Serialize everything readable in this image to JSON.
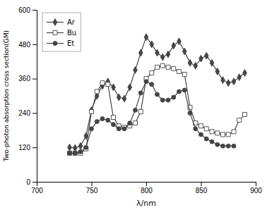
{
  "chart_data": {
    "type": "line",
    "xlabel": "λ/nm",
    "ylabel": "Two-photon absorption cross section(GM)",
    "xlim": [
      700,
      900
    ],
    "ylim": [
      0,
      600
    ],
    "xticks": [
      700,
      750,
      800,
      850,
      900
    ],
    "yticks": [
      0,
      120,
      240,
      360,
      480,
      600
    ],
    "legend": "upper left",
    "series": [
      {
        "name": "Ar",
        "color": "#444444",
        "marker": "diamond",
        "x": [
          730,
          735,
          740,
          745,
          750,
          755,
          760,
          765,
          770,
          775,
          780,
          785,
          790,
          795,
          800,
          805,
          810,
          815,
          820,
          825,
          830,
          835,
          840,
          845,
          850,
          855,
          860,
          865,
          870,
          875,
          880,
          885,
          890
        ],
        "values": [
          120,
          118,
          125,
          160,
          250,
          300,
          335,
          350,
          330,
          295,
          290,
          330,
          390,
          450,
          505,
          480,
          450,
          435,
          445,
          475,
          490,
          455,
          415,
          405,
          430,
          440,
          415,
          385,
          355,
          345,
          350,
          365,
          380
        ]
      },
      {
        "name": "Bu",
        "color": "#444444",
        "marker": "square-open",
        "x": [
          730,
          735,
          740,
          745,
          750,
          755,
          760,
          765,
          770,
          775,
          780,
          785,
          790,
          795,
          800,
          805,
          810,
          815,
          820,
          825,
          830,
          835,
          840,
          845,
          850,
          855,
          860,
          865,
          870,
          875,
          880,
          885,
          890
        ],
        "values": [
          100,
          100,
          100,
          115,
          245,
          315,
          345,
          340,
          225,
          195,
          190,
          195,
          205,
          245,
          360,
          380,
          400,
          405,
          400,
          395,
          385,
          375,
          260,
          205,
          195,
          185,
          175,
          170,
          165,
          165,
          175,
          215,
          235
        ]
      },
      {
        "name": "Et",
        "color": "#444444",
        "marker": "circle",
        "x": [
          730,
          735,
          740,
          745,
          750,
          755,
          760,
          765,
          770,
          775,
          780,
          785,
          790,
          795,
          800,
          805,
          810,
          815,
          820,
          825,
          830,
          835,
          840,
          845,
          850,
          855,
          860,
          865,
          870,
          875,
          880
        ],
        "values": [
          100,
          100,
          105,
          120,
          185,
          210,
          220,
          215,
          200,
          185,
          185,
          205,
          250,
          310,
          350,
          340,
          305,
          285,
          285,
          295,
          315,
          320,
          240,
          185,
          165,
          150,
          140,
          130,
          125,
          125,
          125
        ]
      }
    ]
  }
}
